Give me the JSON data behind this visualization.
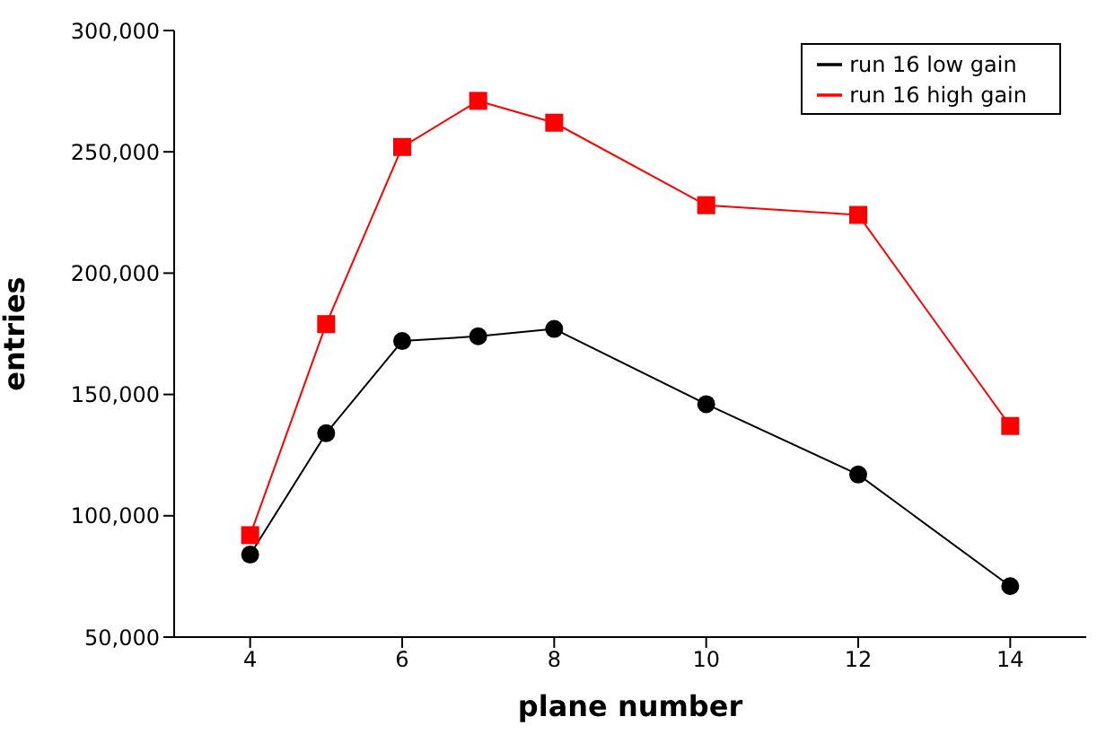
{
  "chart_data": {
    "type": "line",
    "xlabel": "plane number",
    "ylabel": "entries",
    "x": [
      4,
      5,
      6,
      7,
      8,
      10,
      12,
      14
    ],
    "series": [
      {
        "name": "run 16 low gain",
        "color": "#000000",
        "marker": "circle",
        "values": [
          84000,
          134000,
          172000,
          174000,
          177000,
          146000,
          117000,
          71000
        ]
      },
      {
        "name": "run 16 high gain",
        "color": "#ff0000",
        "marker": "square",
        "values": [
          92000,
          179000,
          252000,
          271000,
          262000,
          228000,
          224000,
          137000
        ]
      }
    ],
    "xlim": [
      3,
      15
    ],
    "xticks": [
      4,
      6,
      8,
      10,
      12,
      14
    ],
    "ylim": [
      50000,
      300000
    ],
    "yticks": [
      {
        "value": 50000,
        "label": "50,000"
      },
      {
        "value": 100000,
        "label": "100,000"
      },
      {
        "value": 150000,
        "label": "150,000"
      },
      {
        "value": 200000,
        "label": "200,000"
      },
      {
        "value": 250000,
        "label": "250,000"
      },
      {
        "value": 300000,
        "label": "300,000"
      }
    ],
    "grid": false,
    "legend": "top right"
  }
}
